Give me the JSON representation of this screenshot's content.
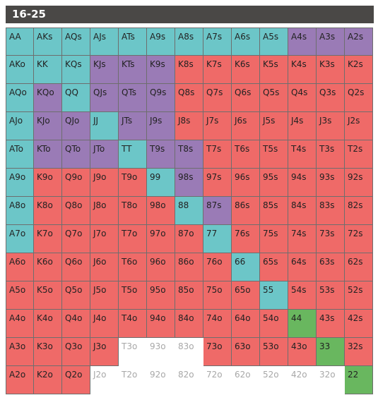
{
  "title": "16-25",
  "colors": {
    "red": "#ef6a68",
    "teal": "#6cc6c8",
    "purple": "#9a7bb6",
    "green": "#69b75f",
    "white": "#ffffff",
    "header": "#4a4846"
  },
  "legend_codes": {
    "r": "red / fold-range",
    "t": "teal",
    "p": "purple",
    "g": "green",
    "w": "white / not shaded"
  },
  "rows": [
    [
      [
        "AA",
        "t"
      ],
      [
        "AKs",
        "t"
      ],
      [
        "AQs",
        "t"
      ],
      [
        "AJs",
        "t"
      ],
      [
        "ATs",
        "t"
      ],
      [
        "A9s",
        "t"
      ],
      [
        "A8s",
        "t"
      ],
      [
        "A7s",
        "t"
      ],
      [
        "A6s",
        "t"
      ],
      [
        "A5s",
        "t"
      ],
      [
        "A4s",
        "p"
      ],
      [
        "A3s",
        "p"
      ],
      [
        "A2s",
        "p"
      ]
    ],
    [
      [
        "AKo",
        "t"
      ],
      [
        "KK",
        "t"
      ],
      [
        "KQs",
        "t"
      ],
      [
        "KJs",
        "p"
      ],
      [
        "KTs",
        "p"
      ],
      [
        "K9s",
        "p"
      ],
      [
        "K8s",
        "r"
      ],
      [
        "K7s",
        "r"
      ],
      [
        "K6s",
        "r"
      ],
      [
        "K5s",
        "r"
      ],
      [
        "K4s",
        "r"
      ],
      [
        "K3s",
        "r"
      ],
      [
        "K2s",
        "r"
      ]
    ],
    [
      [
        "AQo",
        "t"
      ],
      [
        "KQo",
        "p"
      ],
      [
        "QQ",
        "t"
      ],
      [
        "QJs",
        "p"
      ],
      [
        "QTs",
        "p"
      ],
      [
        "Q9s",
        "p"
      ],
      [
        "Q8s",
        "r"
      ],
      [
        "Q7s",
        "r"
      ],
      [
        "Q6s",
        "r"
      ],
      [
        "Q5s",
        "r"
      ],
      [
        "Q4s",
        "r"
      ],
      [
        "Q3s",
        "r"
      ],
      [
        "Q2s",
        "r"
      ]
    ],
    [
      [
        "AJo",
        "t"
      ],
      [
        "KJo",
        "p"
      ],
      [
        "QJo",
        "p"
      ],
      [
        "JJ",
        "t"
      ],
      [
        "JTs",
        "p"
      ],
      [
        "J9s",
        "p"
      ],
      [
        "J8s",
        "r"
      ],
      [
        "J7s",
        "r"
      ],
      [
        "J6s",
        "r"
      ],
      [
        "J5s",
        "r"
      ],
      [
        "J4s",
        "r"
      ],
      [
        "J3s",
        "r"
      ],
      [
        "J2s",
        "r"
      ]
    ],
    [
      [
        "ATo",
        "t"
      ],
      [
        "KTo",
        "p"
      ],
      [
        "QTo",
        "p"
      ],
      [
        "JTo",
        "p"
      ],
      [
        "TT",
        "t"
      ],
      [
        "T9s",
        "p"
      ],
      [
        "T8s",
        "p"
      ],
      [
        "T7s",
        "r"
      ],
      [
        "T6s",
        "r"
      ],
      [
        "T5s",
        "r"
      ],
      [
        "T4s",
        "r"
      ],
      [
        "T3s",
        "r"
      ],
      [
        "T2s",
        "r"
      ]
    ],
    [
      [
        "A9o",
        "t"
      ],
      [
        "K9o",
        "r"
      ],
      [
        "Q9o",
        "r"
      ],
      [
        "J9o",
        "r"
      ],
      [
        "T9o",
        "r"
      ],
      [
        "99",
        "t"
      ],
      [
        "98s",
        "p"
      ],
      [
        "97s",
        "r"
      ],
      [
        "96s",
        "r"
      ],
      [
        "95s",
        "r"
      ],
      [
        "94s",
        "r"
      ],
      [
        "93s",
        "r"
      ],
      [
        "92s",
        "r"
      ]
    ],
    [
      [
        "A8o",
        "t"
      ],
      [
        "K8o",
        "r"
      ],
      [
        "Q8o",
        "r"
      ],
      [
        "J8o",
        "r"
      ],
      [
        "T8o",
        "r"
      ],
      [
        "98o",
        "r"
      ],
      [
        "88",
        "t"
      ],
      [
        "87s",
        "p"
      ],
      [
        "86s",
        "r"
      ],
      [
        "85s",
        "r"
      ],
      [
        "84s",
        "r"
      ],
      [
        "83s",
        "r"
      ],
      [
        "82s",
        "r"
      ]
    ],
    [
      [
        "A7o",
        "t"
      ],
      [
        "K7o",
        "r"
      ],
      [
        "Q7o",
        "r"
      ],
      [
        "J7o",
        "r"
      ],
      [
        "T7o",
        "r"
      ],
      [
        "97o",
        "r"
      ],
      [
        "87o",
        "r"
      ],
      [
        "77",
        "t"
      ],
      [
        "76s",
        "r"
      ],
      [
        "75s",
        "r"
      ],
      [
        "74s",
        "r"
      ],
      [
        "73s",
        "r"
      ],
      [
        "72s",
        "r"
      ]
    ],
    [
      [
        "A6o",
        "r"
      ],
      [
        "K6o",
        "r"
      ],
      [
        "Q6o",
        "r"
      ],
      [
        "J6o",
        "r"
      ],
      [
        "T6o",
        "r"
      ],
      [
        "96o",
        "r"
      ],
      [
        "86o",
        "r"
      ],
      [
        "76o",
        "r"
      ],
      [
        "66",
        "t"
      ],
      [
        "65s",
        "r"
      ],
      [
        "64s",
        "r"
      ],
      [
        "63s",
        "r"
      ],
      [
        "62s",
        "r"
      ]
    ],
    [
      [
        "A5o",
        "r"
      ],
      [
        "K5o",
        "r"
      ],
      [
        "Q5o",
        "r"
      ],
      [
        "J5o",
        "r"
      ],
      [
        "T5o",
        "r"
      ],
      [
        "95o",
        "r"
      ],
      [
        "85o",
        "r"
      ],
      [
        "75o",
        "r"
      ],
      [
        "65o",
        "r"
      ],
      [
        "55",
        "t"
      ],
      [
        "54s",
        "r"
      ],
      [
        "53s",
        "r"
      ],
      [
        "52s",
        "r"
      ]
    ],
    [
      [
        "A4o",
        "r"
      ],
      [
        "K4o",
        "r"
      ],
      [
        "Q4o",
        "r"
      ],
      [
        "J4o",
        "r"
      ],
      [
        "T4o",
        "r"
      ],
      [
        "94o",
        "r"
      ],
      [
        "84o",
        "r"
      ],
      [
        "74o",
        "r"
      ],
      [
        "64o",
        "r"
      ],
      [
        "54o",
        "r"
      ],
      [
        "44",
        "g"
      ],
      [
        "43s",
        "r"
      ],
      [
        "42s",
        "r"
      ]
    ],
    [
      [
        "A3o",
        "r"
      ],
      [
        "K3o",
        "r"
      ],
      [
        "Q3o",
        "r"
      ],
      [
        "J3o",
        "r"
      ],
      [
        "T3o",
        "w"
      ],
      [
        "93o",
        "w"
      ],
      [
        "83o",
        "w"
      ],
      [
        "73o",
        "r"
      ],
      [
        "63o",
        "r"
      ],
      [
        "53o",
        "r"
      ],
      [
        "43o",
        "r"
      ],
      [
        "33",
        "g"
      ],
      [
        "32s",
        "r"
      ]
    ],
    [
      [
        "A2o",
        "r"
      ],
      [
        "K2o",
        "r"
      ],
      [
        "Q2o",
        "r"
      ],
      [
        "J2o",
        "w"
      ],
      [
        "T2o",
        "w"
      ],
      [
        "92o",
        "w"
      ],
      [
        "82o",
        "w"
      ],
      [
        "72o",
        "w"
      ],
      [
        "62o",
        "w"
      ],
      [
        "52o",
        "w"
      ],
      [
        "42o",
        "w"
      ],
      [
        "32o",
        "w"
      ],
      [
        "22",
        "g"
      ]
    ]
  ]
}
